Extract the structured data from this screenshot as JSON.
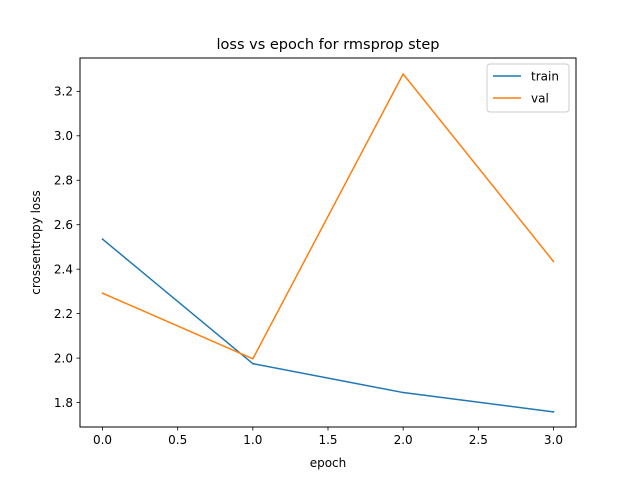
{
  "chart_data": {
    "type": "line",
    "title": "loss vs epoch for rmsprop step",
    "xlabel": "epoch",
    "ylabel": "crossentropy loss",
    "x": [
      0,
      1,
      2,
      3
    ],
    "xlim": [
      -0.15,
      3.15
    ],
    "ylim": [
      1.69,
      3.35
    ],
    "xticks": [
      0.0,
      0.5,
      1.0,
      1.5,
      2.0,
      2.5,
      3.0
    ],
    "xtick_labels": [
      "0.0",
      "0.5",
      "1.0",
      "1.5",
      "2.0",
      "2.5",
      "3.0"
    ],
    "yticks": [
      1.8,
      2.0,
      2.2,
      2.4,
      2.6,
      2.8,
      3.0,
      3.2
    ],
    "ytick_labels": [
      "1.8",
      "2.0",
      "2.2",
      "2.4",
      "2.6",
      "2.8",
      "3.0",
      "3.2"
    ],
    "grid": false,
    "legend_position": "top-right",
    "series": [
      {
        "name": "train",
        "color": "#1f77b4",
        "values": [
          2.535,
          1.975,
          1.845,
          1.758
        ]
      },
      {
        "name": "val",
        "color": "#ff7f0e",
        "values": [
          2.292,
          1.997,
          3.278,
          2.435
        ]
      }
    ]
  }
}
